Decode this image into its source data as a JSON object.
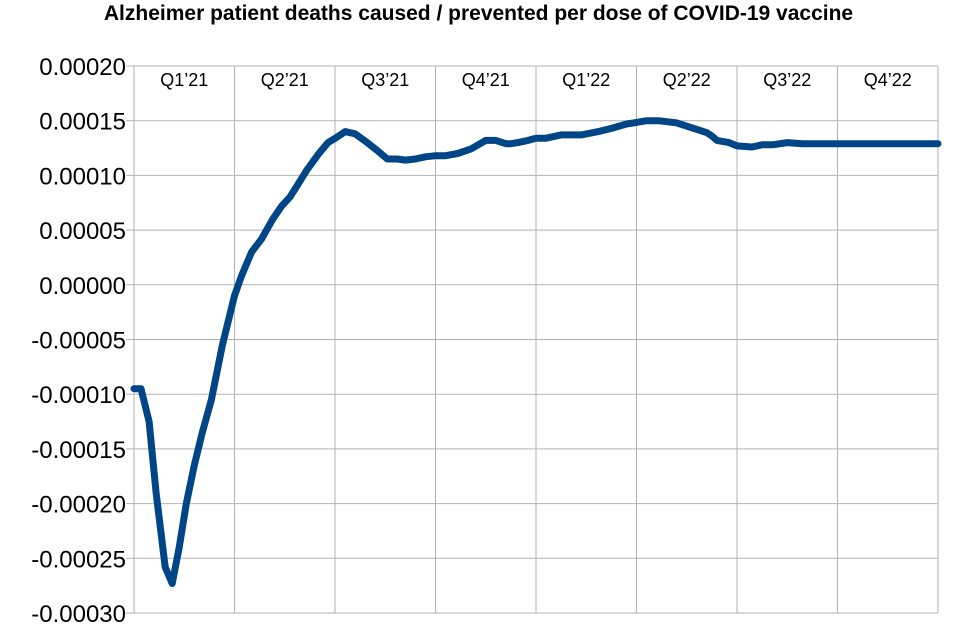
{
  "chart_data": {
    "type": "line",
    "title": "Alzheimer patient deaths caused / prevented per dose of COVID-19 vaccine",
    "xlabel": "",
    "ylabel": "",
    "ylim": [
      -0.0003,
      0.0002
    ],
    "y_ticks": [
      "-0.00030",
      "-0.00025",
      "-0.00020",
      "-0.00015",
      "-0.00010",
      "-0.00005",
      "0.00000",
      "0.00005",
      "0.00010",
      "0.00015",
      "0.00020"
    ],
    "y_tick_values": [
      -0.0003,
      -0.00025,
      -0.0002,
      -0.00015,
      -0.0001,
      -5e-05,
      0,
      5e-05,
      0.0001,
      0.00015,
      0.0002
    ],
    "x_labels": [
      "Q1’21",
      "Q2’21",
      "Q3’21",
      "Q4’21",
      "Q1’22",
      "Q2’22",
      "Q3’22",
      "Q4’22"
    ],
    "x_range": [
      0,
      8
    ],
    "grid": true,
    "legend": "none",
    "line_color": "#004586",
    "series": [
      {
        "x": [
          0.0,
          0.07,
          0.15,
          0.22,
          0.31,
          0.38,
          0.45,
          0.52,
          0.6,
          0.68,
          0.77,
          0.88,
          1.0,
          1.07,
          1.17,
          1.27,
          1.38,
          1.47,
          1.55,
          1.62,
          1.72,
          1.84,
          1.93,
          2.02,
          2.1,
          2.2,
          2.32,
          2.43,
          2.52,
          2.62,
          2.7,
          2.8,
          2.9,
          3.0,
          3.1,
          3.22,
          3.35,
          3.5,
          3.6,
          3.7,
          3.75,
          3.82,
          3.92,
          4.0,
          4.1,
          4.25,
          4.45,
          4.62,
          4.75,
          4.9,
          4.97,
          5.1,
          5.22,
          5.4,
          5.57,
          5.7,
          5.75,
          5.8,
          5.92,
          6.0,
          6.15,
          6.25,
          6.35,
          6.5,
          6.65,
          6.8,
          6.9,
          7.0,
          7.1,
          7.2,
          7.3,
          7.4,
          7.52,
          7.6,
          7.68,
          7.8,
          7.9,
          8.0
        ],
        "y": [
          -9.5e-05,
          -9.5e-05,
          -0.000125,
          -0.00019,
          -0.000258,
          -0.000273,
          -0.00024,
          -0.0002,
          -0.000165,
          -0.000135,
          -0.000105,
          -5.5e-05,
          -1e-05,
          8e-06,
          3e-05,
          4.2e-05,
          6e-05,
          7.2e-05,
          8e-05,
          9e-05,
          0.000105,
          0.00012,
          0.00013,
          0.000135,
          0.00014,
          0.000138,
          0.00013,
          0.000122,
          0.000115,
          0.000115,
          0.000114,
          0.000115,
          0.000117,
          0.000118,
          0.000118,
          0.00012,
          0.000124,
          0.000132,
          0.000132,
          0.000129,
          0.000129,
          0.00013,
          0.000132,
          0.000134,
          0.000134,
          0.000137,
          0.000137,
          0.00014,
          0.000143,
          0.000147,
          0.000148,
          0.00015,
          0.00015,
          0.000148,
          0.000143,
          0.000139,
          0.000136,
          0.000132,
          0.00013,
          0.000127,
          0.000126,
          0.000128,
          0.000128,
          0.00013,
          0.000129,
          0.000129,
          0.000129,
          0.000129,
          0.000129,
          0.000129,
          0.000129,
          0.000129,
          0.000129,
          0.000129,
          0.000129,
          0.000129,
          0.000129,
          0.000129
        ]
      }
    ]
  }
}
